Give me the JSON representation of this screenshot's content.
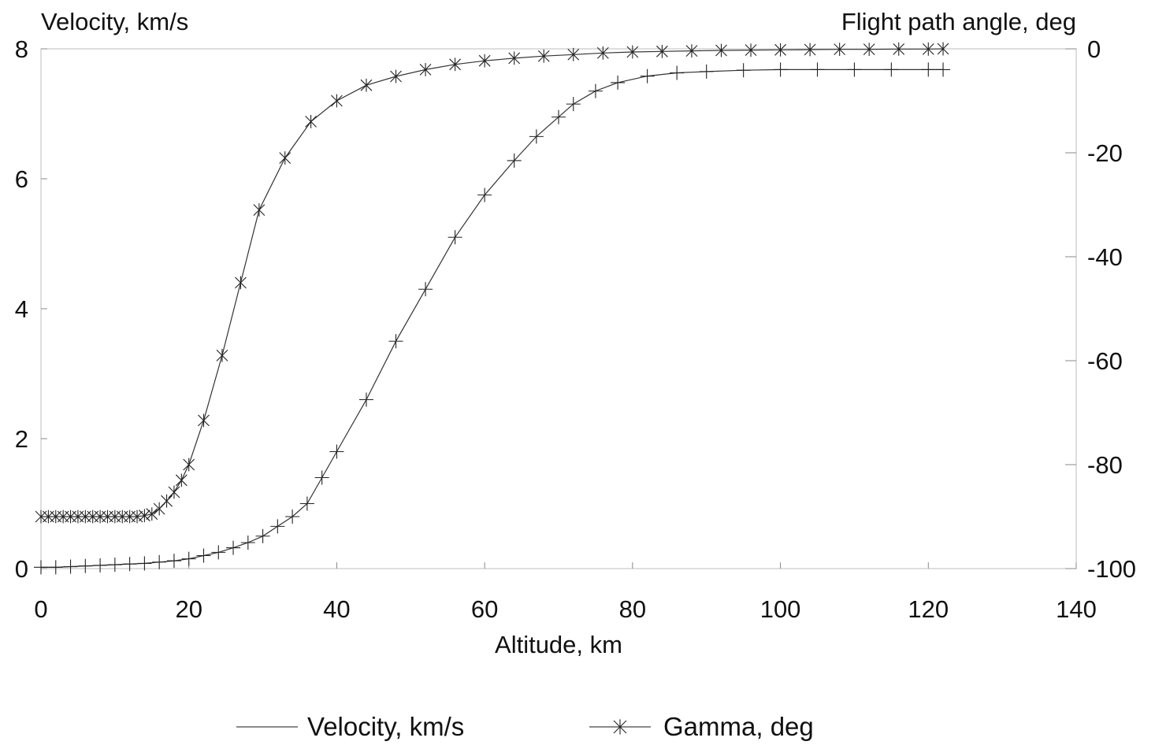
{
  "chart_data": {
    "type": "line",
    "xlabel": "Altitude, km",
    "ylabel_left": "Velocity, km/s",
    "ylabel_right": "Flight path angle, deg",
    "xlim": [
      0,
      140
    ],
    "ylim_left": [
      0,
      8
    ],
    "ylim_right": [
      -100,
      0
    ],
    "x_ticks": [
      0,
      20,
      40,
      60,
      80,
      100,
      120,
      140
    ],
    "y_left_ticks": [
      0,
      2,
      4,
      6,
      8
    ],
    "y_right_ticks": [
      0,
      -20,
      -40,
      -60,
      -80,
      -100
    ],
    "grid": false,
    "legend_position": "bottom",
    "series": [
      {
        "name": "Velocity, km/s",
        "axis": "left",
        "marker": "plus",
        "x": [
          0,
          2,
          4,
          6,
          8,
          10,
          12,
          14,
          16,
          18,
          20,
          22,
          24,
          26,
          28,
          30,
          32,
          34,
          36,
          38,
          40,
          44,
          48,
          52,
          56,
          60,
          64,
          67,
          70,
          72,
          75,
          78,
          82,
          86,
          90,
          95,
          100,
          105,
          110,
          115,
          120,
          122
        ],
        "y": [
          0.02,
          0.02,
          0.03,
          0.04,
          0.05,
          0.06,
          0.07,
          0.08,
          0.1,
          0.12,
          0.15,
          0.2,
          0.25,
          0.32,
          0.4,
          0.5,
          0.65,
          0.8,
          1.0,
          1.4,
          1.8,
          2.6,
          3.5,
          4.3,
          5.1,
          5.75,
          6.28,
          6.65,
          6.95,
          7.15,
          7.35,
          7.48,
          7.58,
          7.63,
          7.65,
          7.67,
          7.68,
          7.68,
          7.68,
          7.68,
          7.68,
          7.68
        ]
      },
      {
        "name": "Gamma, deg",
        "axis": "right",
        "marker": "star",
        "x": [
          0,
          1,
          2,
          3,
          4,
          5,
          6,
          7,
          8,
          9,
          10,
          11,
          12,
          13,
          14,
          15,
          16,
          17,
          18,
          19,
          20,
          22,
          24.5,
          27,
          29.5,
          33,
          36.5,
          40,
          44,
          48,
          52,
          56,
          60,
          64,
          68,
          72,
          76,
          80,
          84,
          88,
          92,
          96,
          100,
          104,
          108,
          112,
          116,
          120,
          122
        ],
        "y": [
          -90,
          -90,
          -90,
          -90,
          -90,
          -90,
          -90,
          -90,
          -90,
          -90,
          -90,
          -90,
          -90,
          -90,
          -89.8,
          -89.5,
          -88.5,
          -87,
          -85.3,
          -83,
          -80,
          -71.5,
          -59,
          -45,
          -31,
          -21,
          -14,
          -10,
          -7,
          -5.3,
          -4,
          -3,
          -2.3,
          -1.8,
          -1.4,
          -1.1,
          -0.8,
          -0.6,
          -0.5,
          -0.4,
          -0.3,
          -0.25,
          -0.2,
          -0.15,
          -0.1,
          -0.1,
          -0.05,
          -0.05,
          0
        ]
      }
    ]
  }
}
